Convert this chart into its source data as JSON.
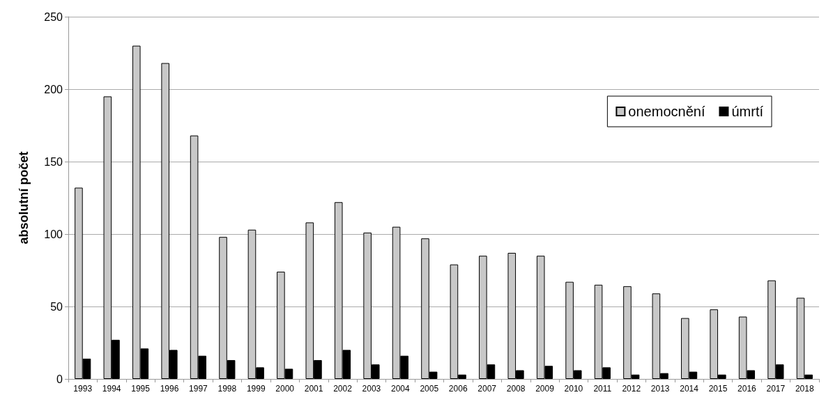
{
  "chart_data": {
    "type": "bar",
    "ylabel": "absolutní počet",
    "categories": [
      "1993",
      "1994",
      "1995",
      "1996",
      "1997",
      "1998",
      "1999",
      "2000",
      "2001",
      "2002",
      "2003",
      "2004",
      "2005",
      "2006",
      "2007",
      "2008",
      "2009",
      "2010",
      "2011",
      "2012",
      "2013",
      "2014",
      "2015",
      "2016",
      "2017",
      "2018"
    ],
    "series": [
      {
        "name": "onemocnění",
        "color": "#c8c8c8",
        "values": [
          132,
          195,
          230,
          218,
          168,
          98,
          103,
          74,
          108,
          122,
          101,
          105,
          97,
          79,
          85,
          87,
          85,
          67,
          65,
          64,
          59,
          42,
          48,
          43,
          68,
          56
        ]
      },
      {
        "name": "úmrtí",
        "color": "#000000",
        "values": [
          14,
          27,
          21,
          20,
          16,
          13,
          8,
          7,
          13,
          20,
          10,
          16,
          5,
          3,
          10,
          6,
          9,
          6,
          8,
          3,
          4,
          5,
          3,
          6,
          10,
          3
        ]
      }
    ],
    "ylim": [
      0,
      250
    ],
    "yticks": [
      0,
      50,
      100,
      150,
      200,
      250
    ],
    "grid": "y",
    "legend": "top right"
  }
}
